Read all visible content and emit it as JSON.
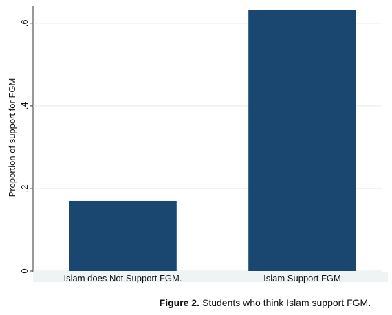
{
  "chart_data": {
    "type": "bar",
    "y_label": "Proportion  of support for FGM",
    "categories": [
      "Islam does Not Support FGM.",
      "Islam Support FGM"
    ],
    "values": [
      0.17,
      0.633
    ],
    "color": "#1a476f",
    "ylim": [
      0,
      0.643
    ],
    "yticks": [
      0,
      {
        "value": 0.2,
        "label": ".2"
      },
      {
        "value": 0.4,
        "label": ".4"
      },
      {
        "value": 0.6,
        "label": ".6"
      }
    ],
    "grid": true,
    "caption_label": "Figure 2.",
    "caption": "Students who think Islam support FGM."
  }
}
